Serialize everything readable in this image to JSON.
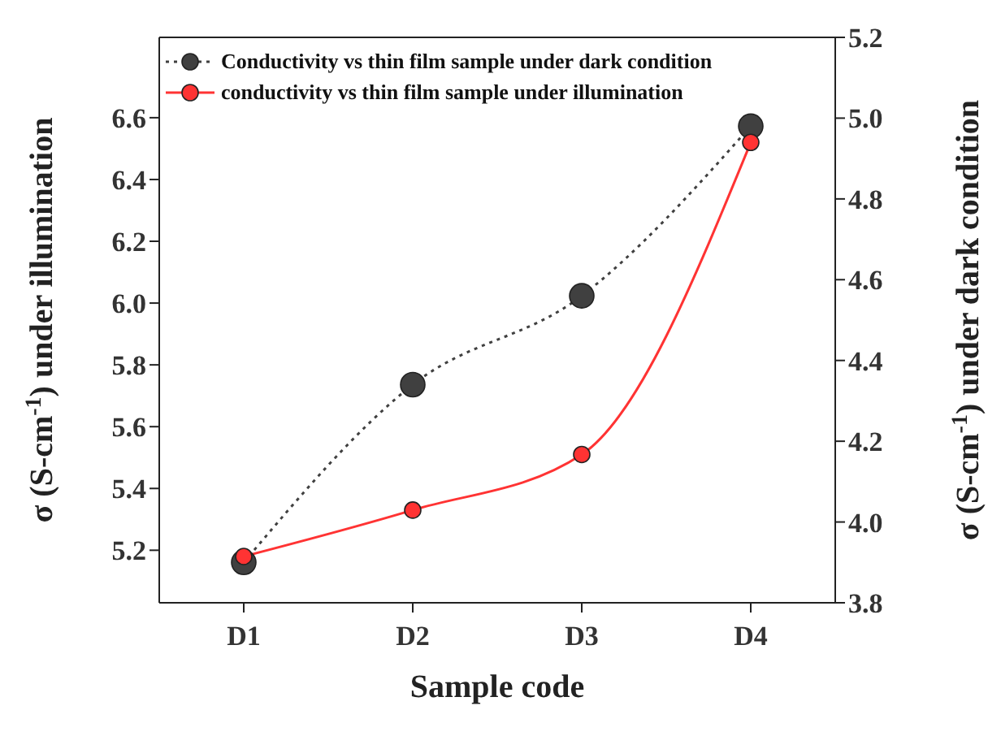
{
  "chart_data": {
    "type": "line",
    "xlabel": "Sample code",
    "ylabel": "σ (S-cm$^{-1}$) under illumination",
    "y2label": "σ (S-cm$^{-1}$) under dark condition",
    "categories": [
      "D1",
      "D2",
      "D3",
      "D4"
    ],
    "series": [
      {
        "name": "Conductivity vs thin film sample under dark condition",
        "color": "#404040",
        "values": [
          3.9,
          4.34,
          4.56,
          4.98
        ],
        "axis": "y2",
        "line_style": "dotted"
      },
      {
        "name": "conductivity vs thin film sample under illumination",
        "color": "#ff3333",
        "values": [
          5.18,
          5.33,
          5.51,
          6.52
        ],
        "line_style": "solid"
      }
    ],
    "ylim": [
      5.03,
      6.86
    ],
    "yticks": [
      5.2,
      5.4,
      5.6,
      5.8,
      {
        "value": 6,
        "label": "6.0"
      },
      6.2,
      6.4,
      6.6
    ],
    "y2lim": [
      3.8,
      5.2
    ],
    "y2ticks": [
      3.8,
      {
        "value": 4,
        "label": "4.0"
      },
      4.2,
      4.4,
      4.6,
      4.8,
      {
        "value": 5,
        "label": "5.0"
      },
      5.2
    ],
    "marker": "circle",
    "legend": "top left",
    "grid": false
  }
}
